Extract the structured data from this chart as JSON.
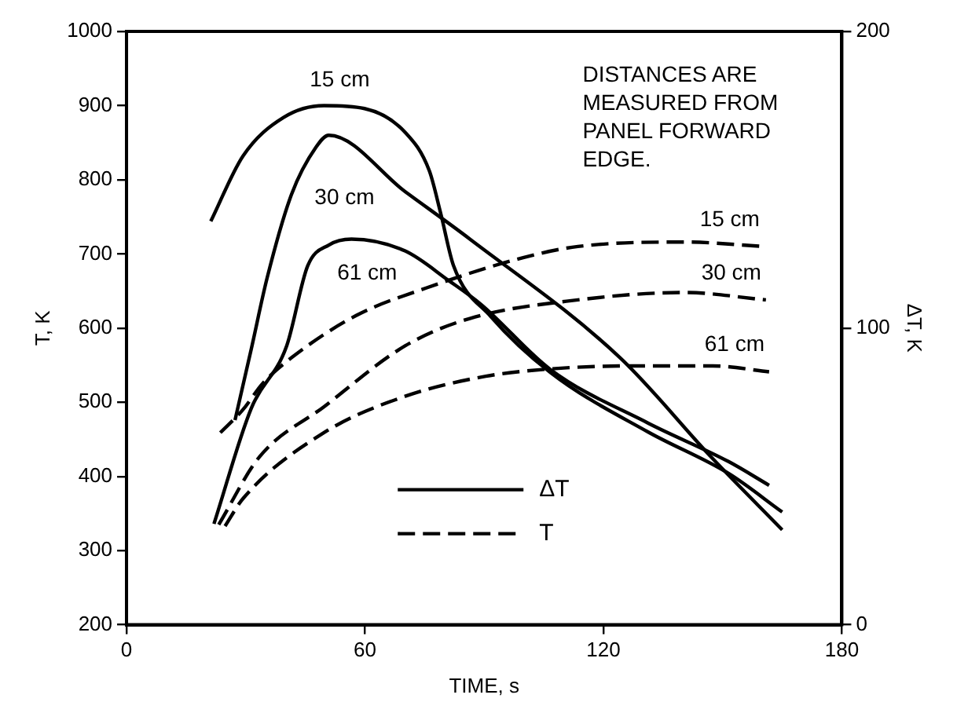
{
  "chart_data": {
    "type": "line",
    "xlabel": "TIME, s",
    "ylabel": "T, K",
    "y2label": "ΔT, K",
    "xlim": [
      0,
      180
    ],
    "xticks": [
      0,
      60,
      120,
      180
    ],
    "ylim": [
      200,
      1000
    ],
    "yticks": [
      200,
      300,
      400,
      500,
      600,
      700,
      800,
      900,
      1000
    ],
    "y2lim": [
      0,
      200
    ],
    "y2ticks": [
      0,
      100,
      200
    ],
    "grid": false,
    "marker": "none",
    "series": [
      {
        "name": "15 cm",
        "color": "#000000",
        "axis": "y2",
        "line_style": "solid",
        "x": [
          21.2,
          29.3,
          39.5,
          49.7,
          59.9,
          70.1,
          76.2,
          79,
          82.3,
          91.6,
          106.7,
          131.2,
          151.5,
          165
        ],
        "values": [
          136,
          158,
          171,
          175,
          174,
          166,
          153,
          139,
          121,
          104,
          85,
          65,
          51,
          38
        ]
      },
      {
        "name": "30 cm",
        "color": "#000000",
        "axis": "y2",
        "line_style": "solid",
        "x": [
          27.3,
          31.4,
          35.4,
          41.5,
          47.7,
          50.9,
          70.1,
          86.4,
          124.2,
          147.5,
          165
        ],
        "values": [
          69,
          93,
          117,
          145,
          161,
          165,
          146,
          130,
          90,
          56,
          32
        ]
      },
      {
        "name": "61 cm",
        "color": "#000000",
        "axis": "y2",
        "line_style": "solid",
        "x": [
          22,
          31.4,
          40.3,
          45.6,
          50.9,
          56.6,
          70.1,
          81.1,
          89.2,
          106.7,
          131.2,
          151.5,
          161.7
        ],
        "values": [
          34,
          73,
          94,
          121,
          128,
          130,
          126,
          116,
          108,
          86,
          68,
          55,
          47
        ]
      },
      {
        "name": "15 cm",
        "color": "#000000",
        "line_style": "dashed",
        "x": [
          23.6,
          29.3,
          34.2,
          41.5,
          57.8,
          75.4,
          99.8,
          113.6,
          140.5,
          160.5
        ],
        "values": [
          459,
          490,
          525,
          560,
          617,
          654,
          695,
          710,
          716,
          710
        ]
      },
      {
        "name": "30 cm",
        "color": "#000000",
        "line_style": "dashed",
        "x": [
          23.2,
          33.4,
          49.7,
          70.1,
          86.4,
          113.6,
          140.5,
          160.9
        ],
        "values": [
          335,
          426,
          494,
          576,
          613,
          638,
          648,
          638
        ]
      },
      {
        "name": "61 cm",
        "color": "#000000",
        "line_style": "dashed",
        "x": [
          24.8,
          29.3,
          49.7,
          70.1,
          90.4,
          106.7,
          127.1,
          147.5,
          161.7
        ],
        "values": [
          333,
          370,
          459,
          508,
          535,
          545,
          549,
          549,
          541
        ]
      }
    ],
    "annotations": [
      "ΔT",
      "T",
      "DISTANCES ARE MEASURED FROM PANEL FORWARD EDGE."
    ]
  }
}
